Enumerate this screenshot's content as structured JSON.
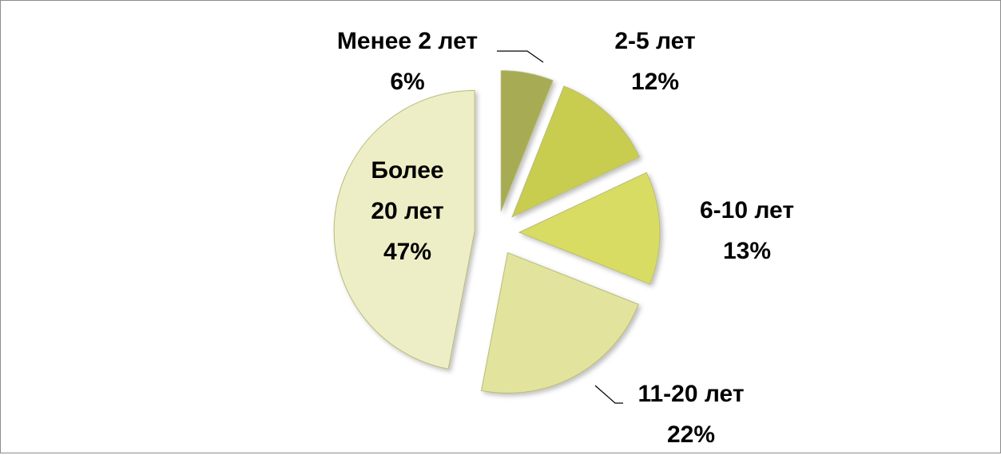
{
  "chart_data": {
    "type": "pie",
    "categories": [
      "Менее 2 лет",
      "2-5 лет",
      "6-10 лет",
      "11-20 лет",
      "Более 20 лет"
    ],
    "values": [
      6,
      12,
      13,
      22,
      47
    ],
    "value_labels": [
      "6%",
      "12%",
      "13%",
      "22%",
      "47%"
    ],
    "colors": [
      "#a7ab52",
      "#c9cd50",
      "#d9dc62",
      "#e2e49e",
      "#eeeec6"
    ]
  }
}
